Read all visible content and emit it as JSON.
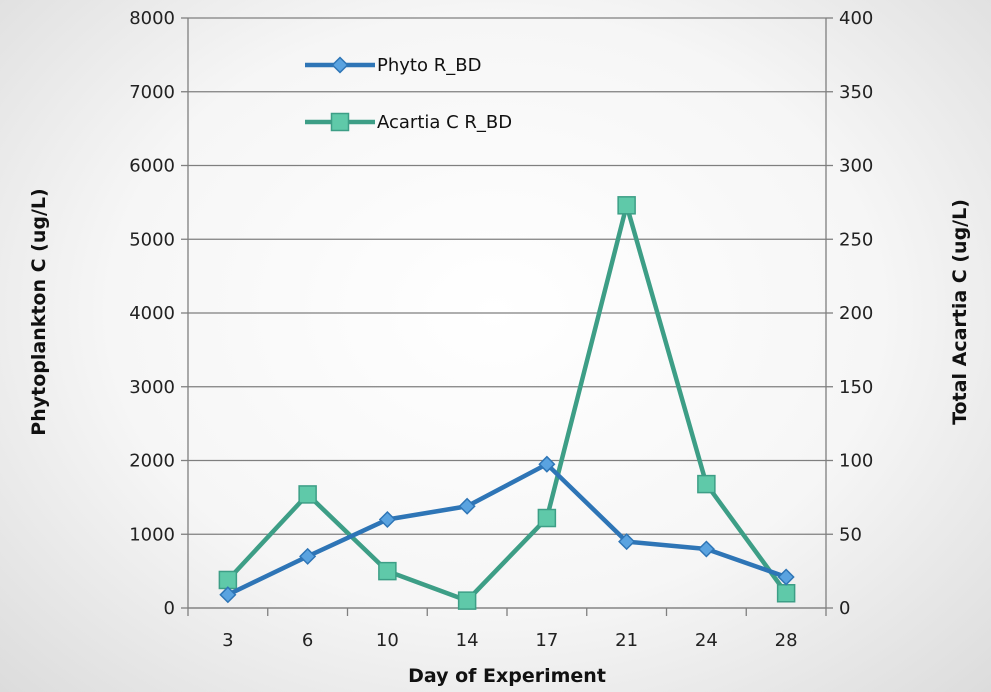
{
  "chart_data": {
    "type": "line",
    "categories": [
      "3",
      "6",
      "10",
      "14",
      "17",
      "21",
      "24",
      "28"
    ],
    "xlabel": "Day of Experiment",
    "ylabel_left": "Phytoplankton C  (ug/L)",
    "ylabel_right": "Total Acartia C (ug/L)",
    "ylim_left": [
      0,
      8000
    ],
    "ylim_right": [
      0,
      400
    ],
    "yticks_left": [
      "0",
      "1000",
      "2000",
      "3000",
      "4000",
      "5000",
      "6000",
      "7000",
      "8000"
    ],
    "yticks_right": [
      "0",
      "50",
      "100",
      "150",
      "200",
      "250",
      "300",
      "350",
      "400"
    ],
    "grid": true,
    "legend_position": "top-left",
    "series": [
      {
        "name": "Phyto R_BD",
        "axis": "left",
        "marker": "diamond",
        "color": "#2E75B6",
        "values": [
          180,
          700,
          1200,
          1380,
          1950,
          900,
          800,
          420
        ]
      },
      {
        "name": "Acartia C R_BD",
        "axis": "right",
        "marker": "square",
        "color": "#3D9E86",
        "values": [
          19,
          77,
          25,
          5,
          61,
          273,
          84,
          10
        ]
      }
    ]
  }
}
